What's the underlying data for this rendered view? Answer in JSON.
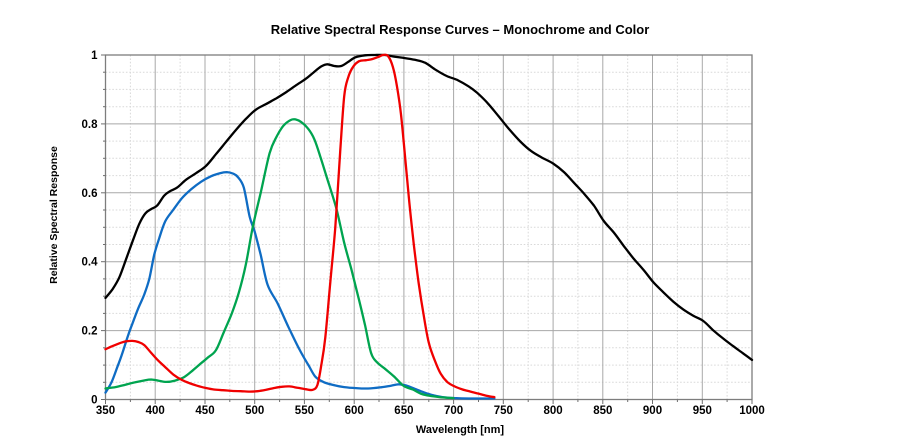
{
  "page": {
    "background": "#ffffff"
  },
  "chart_data": {
    "type": "line",
    "title": "Relative Spectral Response Curves – Monochrome and Color",
    "xlabel": "Wavelength [nm]",
    "ylabel": "Relative Spectral Response",
    "x_range": [
      350,
      1000
    ],
    "y_range": [
      0,
      1
    ],
    "x_major_step": 50,
    "x_minor_step": 25,
    "y_major_step": 0.2,
    "y_minor_step": 0.05,
    "x_ticks": [
      350,
      400,
      450,
      500,
      550,
      600,
      650,
      700,
      750,
      800,
      850,
      900,
      950,
      1000
    ],
    "y_ticks": [
      0,
      0.2,
      0.4,
      0.6,
      0.8,
      1
    ],
    "grid": {
      "major_color": "#a8a8a8",
      "minor_color": "#d9d9d9",
      "border_color": "#7d7d7d",
      "tick_color": "#6e6e6e"
    },
    "legend": "none",
    "series": [
      {
        "name": "monochrome",
        "color": "#000000",
        "points": [
          [
            350,
            0.295
          ],
          [
            357,
            0.32
          ],
          [
            364,
            0.355
          ],
          [
            371,
            0.41
          ],
          [
            378,
            0.465
          ],
          [
            384,
            0.51
          ],
          [
            390,
            0.54
          ],
          [
            396,
            0.553
          ],
          [
            402,
            0.563
          ],
          [
            409,
            0.592
          ],
          [
            415,
            0.605
          ],
          [
            422,
            0.615
          ],
          [
            431,
            0.638
          ],
          [
            441,
            0.657
          ],
          [
            451,
            0.678
          ],
          [
            461,
            0.712
          ],
          [
            471,
            0.747
          ],
          [
            481,
            0.782
          ],
          [
            491,
            0.814
          ],
          [
            501,
            0.841
          ],
          [
            511,
            0.857
          ],
          [
            521,
            0.873
          ],
          [
            531,
            0.891
          ],
          [
            541,
            0.911
          ],
          [
            551,
            0.93
          ],
          [
            559,
            0.949
          ],
          [
            567,
            0.967
          ],
          [
            573,
            0.973
          ],
          [
            580,
            0.968
          ],
          [
            587,
            0.968
          ],
          [
            594,
            0.98
          ],
          [
            601,
            0.993
          ],
          [
            611,
            0.999
          ],
          [
            621,
            1
          ],
          [
            631,
            1
          ],
          [
            641,
            0.995
          ],
          [
            651,
            0.991
          ],
          [
            661,
            0.986
          ],
          [
            671,
            0.978
          ],
          [
            682,
            0.957
          ],
          [
            693,
            0.939
          ],
          [
            704,
            0.927
          ],
          [
            715,
            0.909
          ],
          [
            723,
            0.892
          ],
          [
            734,
            0.861
          ],
          [
            745,
            0.823
          ],
          [
            756,
            0.784
          ],
          [
            767,
            0.749
          ],
          [
            778,
            0.721
          ],
          [
            789,
            0.702
          ],
          [
            800,
            0.685
          ],
          [
            811,
            0.66
          ],
          [
            821,
            0.629
          ],
          [
            831,
            0.598
          ],
          [
            841,
            0.563
          ],
          [
            851,
            0.518
          ],
          [
            861,
            0.485
          ],
          [
            871,
            0.446
          ],
          [
            881,
            0.409
          ],
          [
            891,
            0.376
          ],
          [
            901,
            0.34
          ],
          [
            911,
            0.311
          ],
          [
            921,
            0.284
          ],
          [
            931,
            0.261
          ],
          [
            941,
            0.243
          ],
          [
            951,
            0.228
          ],
          [
            961,
            0.201
          ],
          [
            971,
            0.177
          ],
          [
            981,
            0.155
          ],
          [
            991,
            0.134
          ],
          [
            1000,
            0.115
          ]
        ]
      },
      {
        "name": "blue",
        "color": "#0f6cc4",
        "points": [
          [
            350,
            0.02
          ],
          [
            356,
            0.05
          ],
          [
            362,
            0.095
          ],
          [
            367,
            0.135
          ],
          [
            372,
            0.18
          ],
          [
            377,
            0.22
          ],
          [
            383,
            0.265
          ],
          [
            389,
            0.305
          ],
          [
            394,
            0.35
          ],
          [
            399,
            0.42
          ],
          [
            404,
            0.468
          ],
          [
            410,
            0.517
          ],
          [
            418,
            0.55
          ],
          [
            427,
            0.585
          ],
          [
            436,
            0.61
          ],
          [
            446,
            0.632
          ],
          [
            456,
            0.648
          ],
          [
            465,
            0.657
          ],
          [
            472,
            0.66
          ],
          [
            478,
            0.656
          ],
          [
            483,
            0.646
          ],
          [
            489,
            0.615
          ],
          [
            495,
            0.53
          ],
          [
            500,
            0.487
          ],
          [
            506,
            0.42
          ],
          [
            513,
            0.333
          ],
          [
            523,
            0.279
          ],
          [
            534,
            0.21
          ],
          [
            545,
            0.145
          ],
          [
            554,
            0.1
          ],
          [
            561,
            0.066
          ],
          [
            569,
            0.051
          ],
          [
            579,
            0.042
          ],
          [
            590,
            0.036
          ],
          [
            602,
            0.033
          ],
          [
            614,
            0.032
          ],
          [
            626,
            0.035
          ],
          [
            637,
            0.04
          ],
          [
            645,
            0.044
          ],
          [
            653,
            0.04
          ],
          [
            661,
            0.031
          ],
          [
            670,
            0.021
          ],
          [
            680,
            0.012
          ],
          [
            691,
            0.006
          ],
          [
            703,
            0.004
          ],
          [
            716,
            0.003
          ],
          [
            729,
            0.003
          ],
          [
            741,
            0.003
          ]
        ]
      },
      {
        "name": "green",
        "color": "#00a44f",
        "points": [
          [
            350,
            0.032
          ],
          [
            360,
            0.036
          ],
          [
            370,
            0.043
          ],
          [
            380,
            0.05
          ],
          [
            390,
            0.056
          ],
          [
            396,
            0.058
          ],
          [
            403,
            0.055
          ],
          [
            411,
            0.051
          ],
          [
            420,
            0.055
          ],
          [
            429,
            0.065
          ],
          [
            438,
            0.085
          ],
          [
            446,
            0.105
          ],
          [
            453,
            0.122
          ],
          [
            461,
            0.143
          ],
          [
            469,
            0.196
          ],
          [
            477,
            0.25
          ],
          [
            484,
            0.31
          ],
          [
            491,
            0.39
          ],
          [
            498,
            0.5
          ],
          [
            506,
            0.6
          ],
          [
            515,
            0.715
          ],
          [
            522,
            0.763
          ],
          [
            529,
            0.795
          ],
          [
            536,
            0.811
          ],
          [
            541,
            0.813
          ],
          [
            547,
            0.805
          ],
          [
            554,
            0.785
          ],
          [
            560,
            0.755
          ],
          [
            566,
            0.705
          ],
          [
            573,
            0.64
          ],
          [
            582,
            0.555
          ],
          [
            590,
            0.455
          ],
          [
            597,
            0.38
          ],
          [
            604,
            0.3
          ],
          [
            611,
            0.215
          ],
          [
            617,
            0.135
          ],
          [
            623,
            0.108
          ],
          [
            631,
            0.089
          ],
          [
            640,
            0.067
          ],
          [
            650,
            0.039
          ],
          [
            659,
            0.029
          ],
          [
            668,
            0.016
          ],
          [
            678,
            0.01
          ],
          [
            689,
            0.006
          ],
          [
            700,
            0.004
          ]
        ]
      },
      {
        "name": "red",
        "color": "#f00000",
        "points": [
          [
            350,
            0.146
          ],
          [
            357,
            0.155
          ],
          [
            364,
            0.163
          ],
          [
            371,
            0.169
          ],
          [
            377,
            0.17
          ],
          [
            383,
            0.167
          ],
          [
            389,
            0.158
          ],
          [
            396,
            0.135
          ],
          [
            403,
            0.113
          ],
          [
            410,
            0.094
          ],
          [
            418,
            0.073
          ],
          [
            426,
            0.058
          ],
          [
            434,
            0.048
          ],
          [
            442,
            0.04
          ],
          [
            450,
            0.034
          ],
          [
            459,
            0.029
          ],
          [
            468,
            0.027
          ],
          [
            477,
            0.025
          ],
          [
            486,
            0.024
          ],
          [
            495,
            0.023
          ],
          [
            503,
            0.024
          ],
          [
            511,
            0.028
          ],
          [
            519,
            0.033
          ],
          [
            527,
            0.037
          ],
          [
            535,
            0.038
          ],
          [
            543,
            0.034
          ],
          [
            551,
            0.03
          ],
          [
            558,
            0.028
          ],
          [
            563,
            0.042
          ],
          [
            567,
            0.1
          ],
          [
            571,
            0.18
          ],
          [
            576,
            0.34
          ],
          [
            581,
            0.5
          ],
          [
            586,
            0.72
          ],
          [
            590,
            0.88
          ],
          [
            594,
            0.935
          ],
          [
            599,
            0.966
          ],
          [
            605,
            0.982
          ],
          [
            612,
            0.985
          ],
          [
            618,
            0.988
          ],
          [
            624,
            0.994
          ],
          [
            629,
            1
          ],
          [
            634,
            0.997
          ],
          [
            639,
            0.965
          ],
          [
            643,
            0.91
          ],
          [
            647,
            0.83
          ],
          [
            651,
            0.71
          ],
          [
            655,
            0.585
          ],
          [
            660,
            0.45
          ],
          [
            665,
            0.335
          ],
          [
            670,
            0.243
          ],
          [
            675,
            0.165
          ],
          [
            681,
            0.114
          ],
          [
            687,
            0.075
          ],
          [
            694,
            0.05
          ],
          [
            701,
            0.038
          ],
          [
            709,
            0.029
          ],
          [
            717,
            0.023
          ],
          [
            725,
            0.017
          ],
          [
            733,
            0.011
          ],
          [
            741,
            0.007
          ]
        ]
      }
    ]
  }
}
